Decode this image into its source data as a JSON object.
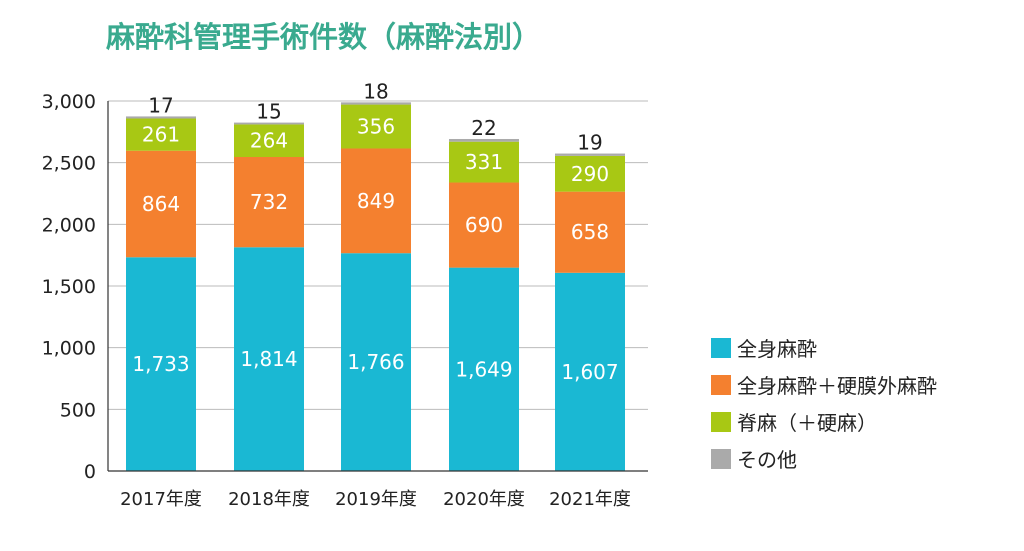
{
  "colors": {
    "title": "#3aaa8f",
    "general": "#1ab8d3",
    "general_epidural": "#f4802f",
    "spinal": "#a8c814",
    "other": "#aaaaaa",
    "grid": "#bbbbbb",
    "axis": "#333333",
    "text": "#222222"
  },
  "chart_data": {
    "type": "bar",
    "stacked": true,
    "title": "麻酔科管理手術件数（麻酔法別）",
    "categories": [
      "2017年度",
      "2018年度",
      "2019年度",
      "2020年度",
      "2021年度"
    ],
    "series": [
      {
        "name": "全身麻酔",
        "color_key": "general",
        "values": [
          1733,
          1814,
          1766,
          1649,
          1607
        ],
        "labels": [
          "1,733",
          "1,814",
          "1,766",
          "1,649",
          "1,607"
        ]
      },
      {
        "name": "全身麻酔＋硬膜外麻酔",
        "color_key": "general_epidural",
        "values": [
          864,
          732,
          849,
          690,
          658
        ],
        "labels": [
          "864",
          "732",
          "849",
          "690",
          "658"
        ]
      },
      {
        "name": "脊麻（＋硬麻）",
        "color_key": "spinal",
        "values": [
          261,
          264,
          356,
          331,
          290
        ],
        "labels": [
          "261",
          "264",
          "356",
          "331",
          "290"
        ]
      },
      {
        "name": "その他",
        "color_key": "other",
        "values": [
          17,
          15,
          18,
          22,
          19
        ],
        "labels": [
          "17",
          "15",
          "18",
          "22",
          "19"
        ]
      }
    ],
    "ylim": [
      0,
      3000
    ],
    "yticks": [
      0,
      500,
      1000,
      1500,
      2000,
      2500,
      3000
    ],
    "ytick_labels": [
      "0",
      "500",
      "1,000",
      "1,500",
      "2,000",
      "2,500",
      "3,000"
    ],
    "grid": true,
    "legend_position": "right"
  }
}
